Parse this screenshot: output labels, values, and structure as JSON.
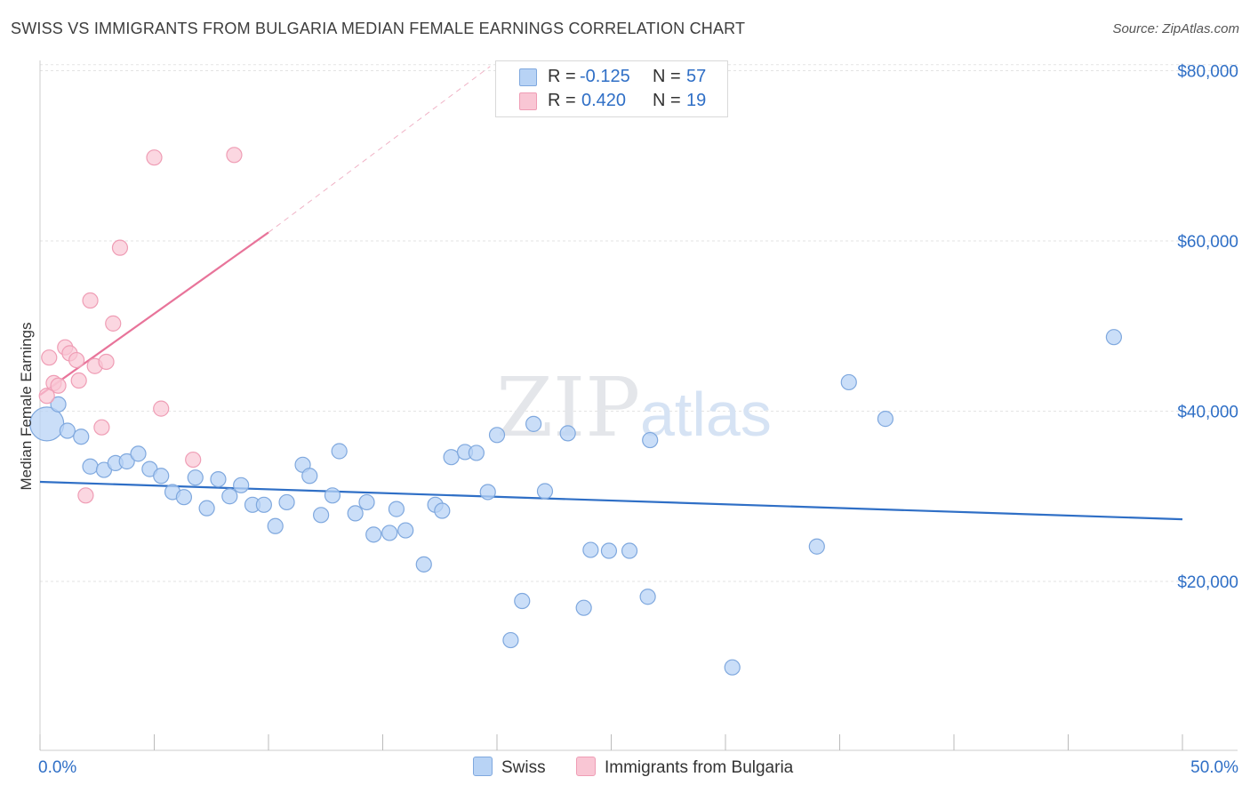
{
  "title": "SWISS VS IMMIGRANTS FROM BULGARIA MEDIAN FEMALE EARNINGS CORRELATION CHART",
  "source": "Source: ZipAtlas.com",
  "watermark": {
    "zip": "ZIP",
    "atlas": "atlas"
  },
  "legend": {
    "r_label": "R =",
    "n_label": "N =",
    "rows": [
      {
        "r": "-0.125",
        "n": "57"
      },
      {
        "r": "0.420",
        "n": "19"
      }
    ]
  },
  "colors": {
    "swiss_fill": "#b8d3f5",
    "swiss_stroke": "#7fa8de",
    "swiss_line": "#2f6fc6",
    "bulgaria_fill": "#f9c6d4",
    "bulgaria_stroke": "#ef9db5",
    "bulgaria_line": "#e8749a",
    "axis_text": "#2f6fc6"
  },
  "chart_data": {
    "type": "scatter",
    "title": "SWISS VS IMMIGRANTS FROM BULGARIA MEDIAN FEMALE EARNINGS CORRELATION CHART",
    "xlabel": "",
    "ylabel": "Median Female Earnings",
    "xlim": [
      0,
      50
    ],
    "ylim": [
      0,
      82000
    ],
    "x_tick_labels": [
      "0.0%",
      "50.0%"
    ],
    "y_ticks": [
      20000,
      40000,
      60000,
      80000
    ],
    "y_tick_labels": [
      "$20,000",
      "$40,000",
      "$60,000",
      "$80,000"
    ],
    "grid": true,
    "legend_position": "bottom",
    "series": [
      {
        "name": "Swiss",
        "trend": {
          "x": [
            0,
            50
          ],
          "y": [
            31700,
            27300
          ]
        },
        "points": [
          {
            "x": 0.3,
            "y": 38500,
            "big": true
          },
          {
            "x": 0.8,
            "y": 40800
          },
          {
            "x": 1.2,
            "y": 37700
          },
          {
            "x": 1.8,
            "y": 37000
          },
          {
            "x": 2.2,
            "y": 33500
          },
          {
            "x": 2.8,
            "y": 33100
          },
          {
            "x": 3.3,
            "y": 33900
          },
          {
            "x": 3.8,
            "y": 34100
          },
          {
            "x": 4.3,
            "y": 35000
          },
          {
            "x": 4.8,
            "y": 33200
          },
          {
            "x": 5.3,
            "y": 32400
          },
          {
            "x": 5.8,
            "y": 30500
          },
          {
            "x": 6.3,
            "y": 29900
          },
          {
            "x": 6.8,
            "y": 32200
          },
          {
            "x": 7.3,
            "y": 28600
          },
          {
            "x": 7.8,
            "y": 32000
          },
          {
            "x": 8.3,
            "y": 30000
          },
          {
            "x": 8.8,
            "y": 31300
          },
          {
            "x": 9.3,
            "y": 29000
          },
          {
            "x": 9.8,
            "y": 29000
          },
          {
            "x": 10.3,
            "y": 26500
          },
          {
            "x": 10.8,
            "y": 29300
          },
          {
            "x": 11.5,
            "y": 33700
          },
          {
            "x": 11.8,
            "y": 32400
          },
          {
            "x": 12.3,
            "y": 27800
          },
          {
            "x": 12.8,
            "y": 30100
          },
          {
            "x": 13.1,
            "y": 35300
          },
          {
            "x": 13.8,
            "y": 28000
          },
          {
            "x": 14.3,
            "y": 29300
          },
          {
            "x": 14.6,
            "y": 25500
          },
          {
            "x": 15.3,
            "y": 25700
          },
          {
            "x": 15.6,
            "y": 28500
          },
          {
            "x": 16.0,
            "y": 26000
          },
          {
            "x": 16.8,
            "y": 22000
          },
          {
            "x": 17.3,
            "y": 29000
          },
          {
            "x": 17.6,
            "y": 28300
          },
          {
            "x": 18.0,
            "y": 34600
          },
          {
            "x": 18.6,
            "y": 35200
          },
          {
            "x": 19.1,
            "y": 35100
          },
          {
            "x": 19.6,
            "y": 30500
          },
          {
            "x": 20.0,
            "y": 37200
          },
          {
            "x": 20.6,
            "y": 13100
          },
          {
            "x": 21.1,
            "y": 17700
          },
          {
            "x": 21.6,
            "y": 38500
          },
          {
            "x": 22.1,
            "y": 30600
          },
          {
            "x": 23.1,
            "y": 37400
          },
          {
            "x": 23.8,
            "y": 16900
          },
          {
            "x": 24.1,
            "y": 23700
          },
          {
            "x": 24.9,
            "y": 23600
          },
          {
            "x": 25.8,
            "y": 23600
          },
          {
            "x": 26.6,
            "y": 18200
          },
          {
            "x": 26.7,
            "y": 36600
          },
          {
            "x": 30.3,
            "y": 9900
          },
          {
            "x": 34.0,
            "y": 24100
          },
          {
            "x": 35.4,
            "y": 43400
          },
          {
            "x": 37.0,
            "y": 39100
          },
          {
            "x": 47.0,
            "y": 48700
          }
        ]
      },
      {
        "name": "Immigrants from Bulgaria",
        "trend": {
          "x": [
            0,
            10.0
          ],
          "y": [
            41900,
            61000
          ]
        },
        "trend_extension": {
          "x": [
            10.0,
            19.7
          ],
          "y": [
            61000,
            80500
          ]
        },
        "points": [
          {
            "x": 0.3,
            "y": 41800
          },
          {
            "x": 0.4,
            "y": 46300
          },
          {
            "x": 0.6,
            "y": 43300
          },
          {
            "x": 0.8,
            "y": 43000
          },
          {
            "x": 1.1,
            "y": 47500
          },
          {
            "x": 1.3,
            "y": 46800
          },
          {
            "x": 1.6,
            "y": 46000
          },
          {
            "x": 1.7,
            "y": 43600
          },
          {
            "x": 2.0,
            "y": 30100
          },
          {
            "x": 2.2,
            "y": 53000
          },
          {
            "x": 2.4,
            "y": 45300
          },
          {
            "x": 2.7,
            "y": 38100
          },
          {
            "x": 2.9,
            "y": 45800
          },
          {
            "x": 3.2,
            "y": 50300
          },
          {
            "x": 3.5,
            "y": 59200
          },
          {
            "x": 5.0,
            "y": 69800
          },
          {
            "x": 5.3,
            "y": 40300
          },
          {
            "x": 6.7,
            "y": 34300
          },
          {
            "x": 8.5,
            "y": 70100
          }
        ]
      }
    ]
  }
}
